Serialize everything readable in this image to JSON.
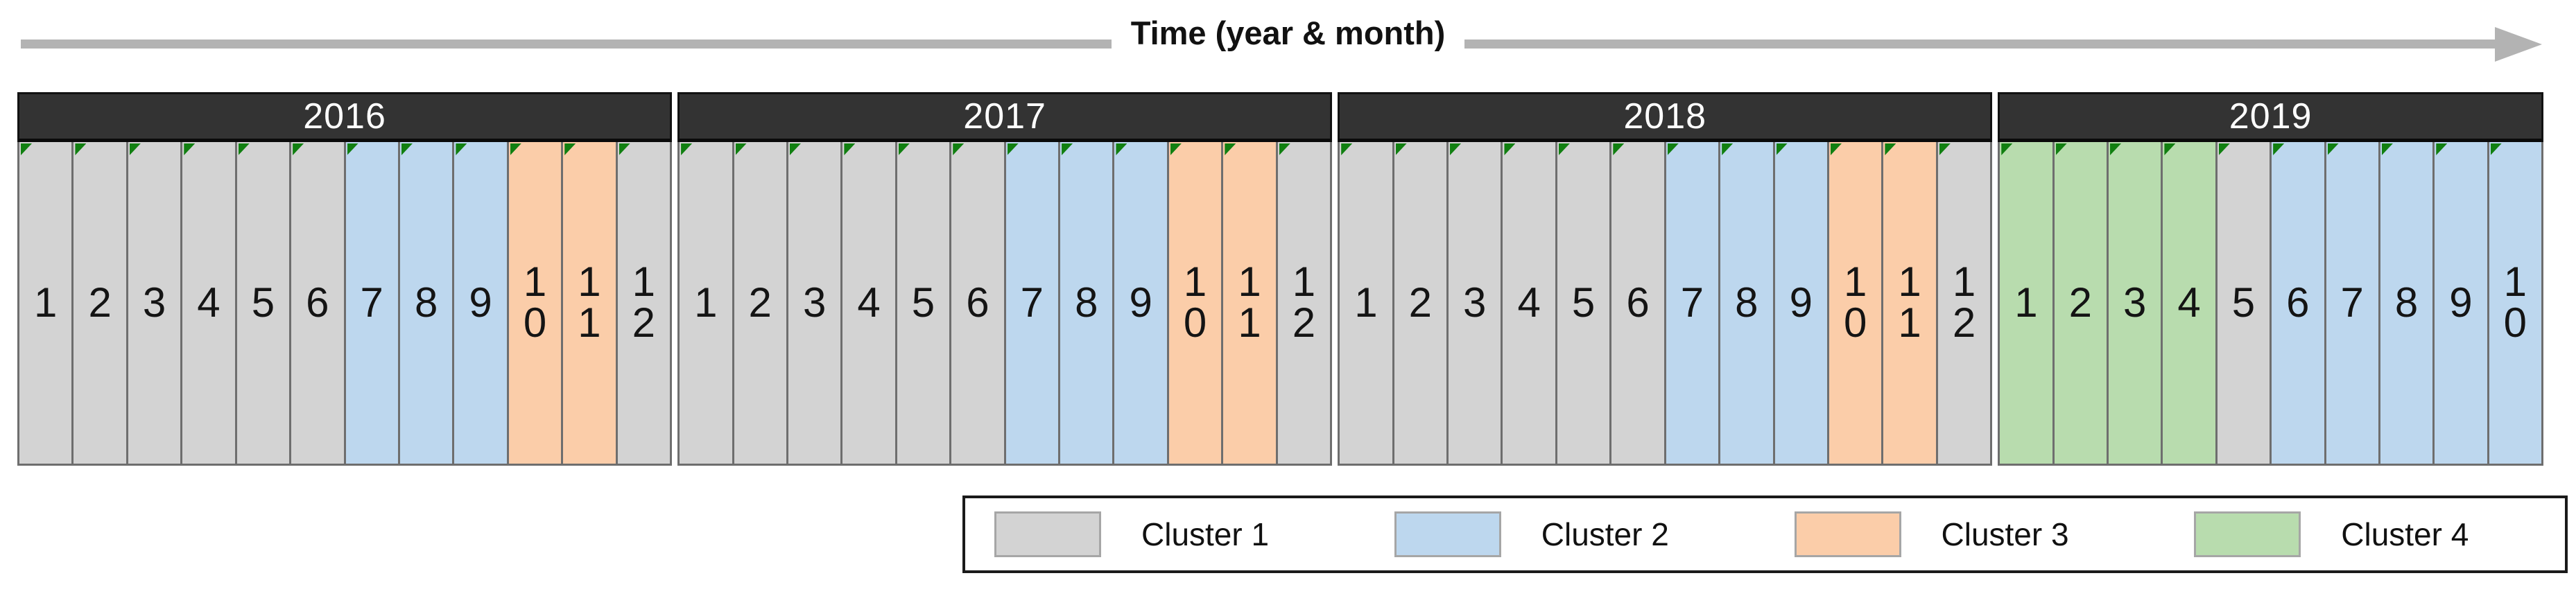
{
  "title": "Time (year & month)",
  "axis": {
    "label": "Time (year & month)",
    "arrow_color": "#B3B3B3"
  },
  "colors": {
    "background": "#FFFFFF",
    "year_header_bg": "#333333",
    "year_header_text": "#FFFFFF",
    "cell_border": "#6E6E6E",
    "corner_marker": "#117F11",
    "text": "#141414"
  },
  "chart_data": {
    "type": "heatmap",
    "title": "Time (year & month)",
    "xlabel": "Time (year & month)",
    "unit": "month",
    "legend_position": "bottom-right",
    "cluster_colors": {
      "Cluster 1": "#D3D3D3",
      "Cluster 2": "#BDD7EE",
      "Cluster 3": "#FBCDA9",
      "Cluster 4": "#B8DCAE"
    },
    "years": [
      {
        "year": "2016",
        "months": [
          "1",
          "2",
          "3",
          "4",
          "5",
          "6",
          "7",
          "8",
          "9",
          "10",
          "11",
          "12"
        ],
        "clusters": [
          1,
          1,
          1,
          1,
          1,
          1,
          2,
          2,
          2,
          3,
          3,
          1
        ]
      },
      {
        "year": "2017",
        "months": [
          "1",
          "2",
          "3",
          "4",
          "5",
          "6",
          "7",
          "8",
          "9",
          "10",
          "11",
          "12"
        ],
        "clusters": [
          1,
          1,
          1,
          1,
          1,
          1,
          2,
          2,
          2,
          3,
          3,
          1
        ]
      },
      {
        "year": "2018",
        "months": [
          "1",
          "2",
          "3",
          "4",
          "5",
          "6",
          "7",
          "8",
          "9",
          "10",
          "11",
          "12"
        ],
        "clusters": [
          1,
          1,
          1,
          1,
          1,
          1,
          2,
          2,
          2,
          3,
          3,
          1
        ]
      },
      {
        "year": "2019",
        "months": [
          "1",
          "2",
          "3",
          "4",
          "5",
          "6",
          "7",
          "8",
          "9",
          "10"
        ],
        "clusters": [
          4,
          4,
          4,
          4,
          1,
          2,
          2,
          2,
          2,
          2
        ]
      }
    ],
    "legend": [
      {
        "label": "Cluster 1",
        "color": "#D3D3D3"
      },
      {
        "label": "Cluster 2",
        "color": "#BDD7EE"
      },
      {
        "label": "Cluster 3",
        "color": "#FBCDA9"
      },
      {
        "label": "Cluster 4",
        "color": "#B8DCAE"
      }
    ]
  }
}
